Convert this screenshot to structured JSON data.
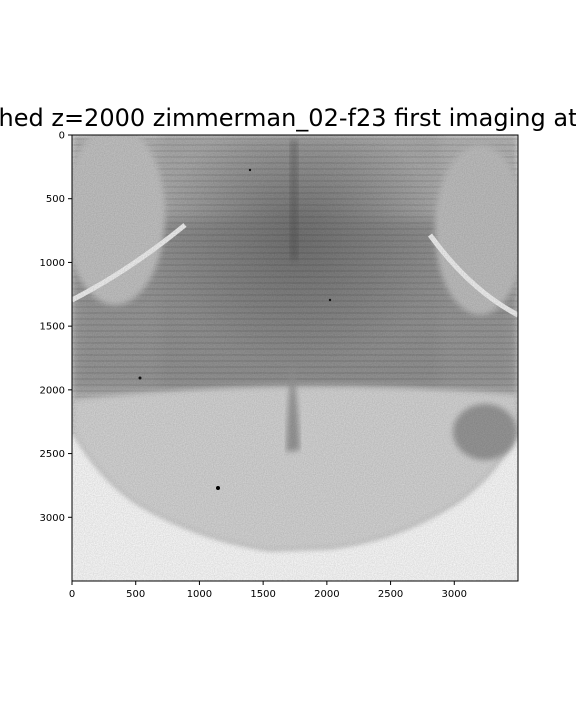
{
  "chart_data": {
    "type": "heatmap",
    "title": "hed z=2000 zimmerman_02-f23 first imaging at",
    "xlabel": "",
    "ylabel": "",
    "colormap": "gray_r",
    "xlim": [
      0,
      3500
    ],
    "ylim": [
      3500,
      0
    ],
    "xticks": [
      0,
      500,
      1000,
      1500,
      2000,
      2500,
      3000
    ],
    "yticks": [
      0,
      500,
      1000,
      1500,
      2000,
      2500,
      3000
    ],
    "image_description": "Grayscale fluorescence brain section image (inverted grayscale), horizontal striping artifacts, bilateral lobes on left and right edges, dark central medial structure"
  }
}
